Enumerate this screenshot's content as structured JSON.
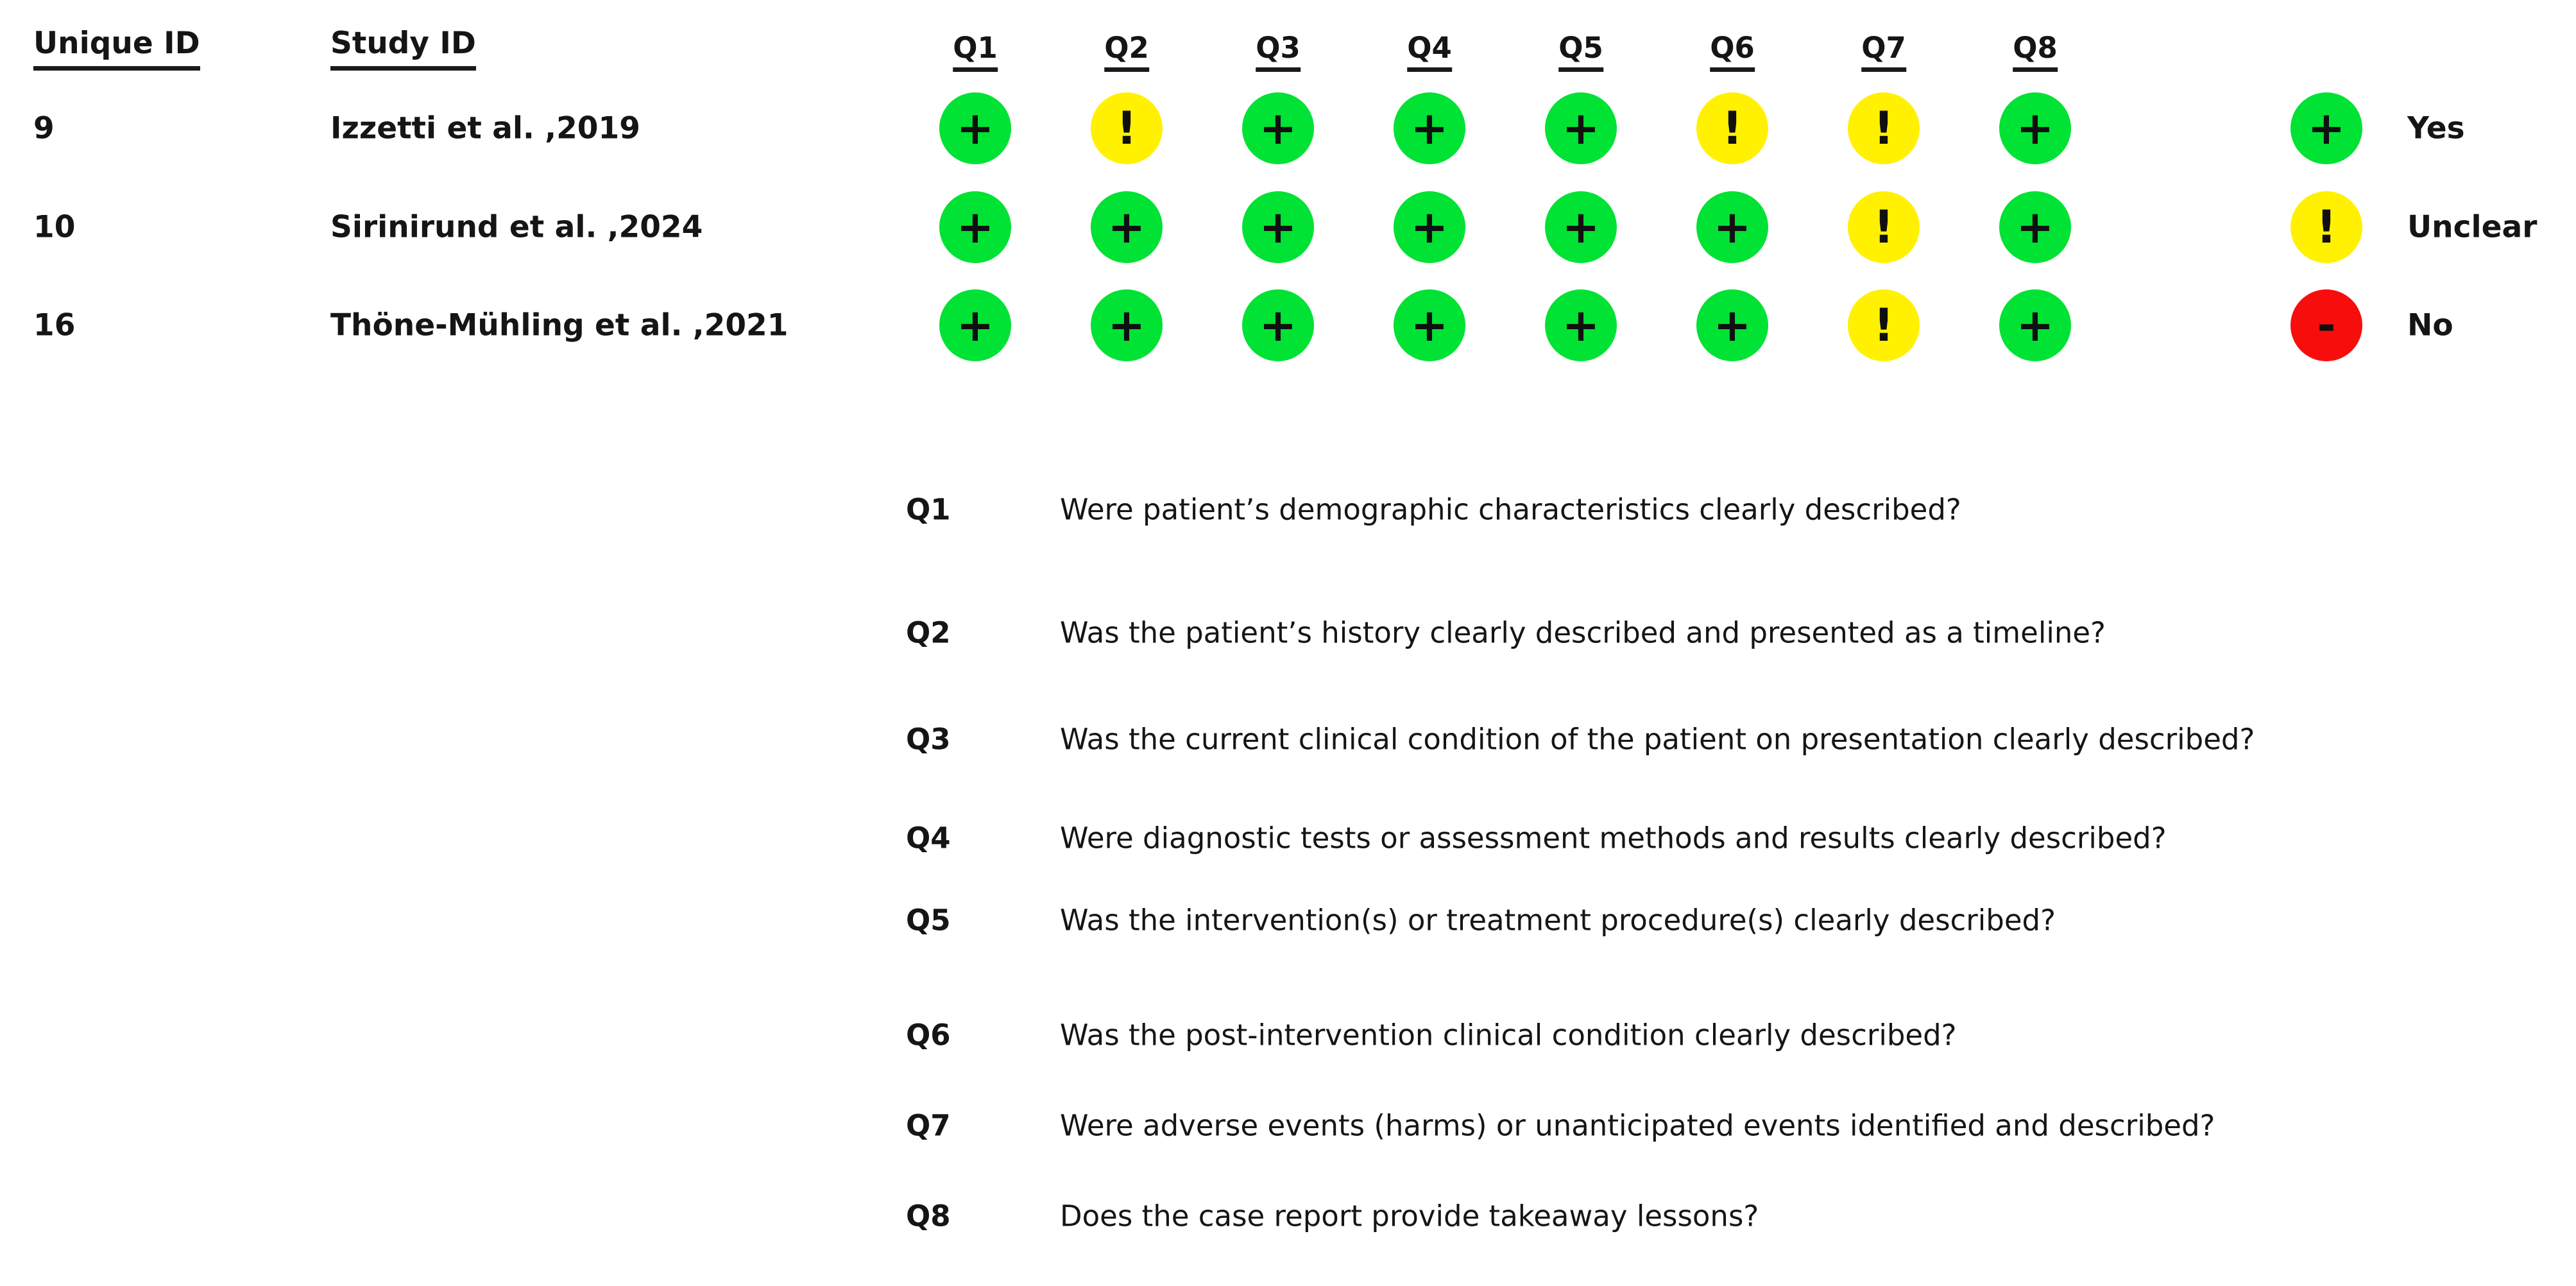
{
  "figure": {
    "headers": {
      "unique_id": "Unique ID",
      "study_id": "Study ID"
    },
    "question_columns": [
      "Q1",
      "Q2",
      "Q3",
      "Q4",
      "Q5",
      "Q6",
      "Q7",
      "Q8"
    ],
    "studies": [
      {
        "unique_id": "9",
        "study_id": "Izzetti et al. ,2019",
        "ratings": [
          "yes",
          "unclear",
          "yes",
          "yes",
          "yes",
          "unclear",
          "unclear",
          "yes"
        ]
      },
      {
        "unique_id": "10",
        "study_id": "Sirinirund et al. ,2024",
        "ratings": [
          "yes",
          "yes",
          "yes",
          "yes",
          "yes",
          "yes",
          "unclear",
          "yes"
        ]
      },
      {
        "unique_id": "16",
        "study_id": "Thöne-Mühling et al. ,2021",
        "ratings": [
          "yes",
          "yes",
          "yes",
          "yes",
          "yes",
          "yes",
          "unclear",
          "yes"
        ]
      }
    ],
    "rating_styles": {
      "yes": {
        "symbol": "+",
        "color": "#00E234"
      },
      "unclear": {
        "symbol": "!",
        "color": "#FFF100"
      },
      "no": {
        "symbol": "-",
        "color": "#F80D0D"
      }
    },
    "legend": [
      {
        "key": "yes",
        "label": "Yes"
      },
      {
        "key": "unclear",
        "label": "Unclear"
      },
      {
        "key": "no",
        "label": "No"
      }
    ],
    "questions": [
      {
        "id": "Q1",
        "text": "Were patient’s demographic characteristics clearly described?"
      },
      {
        "id": "Q2",
        "text": "Was the patient’s history clearly described and presented as a timeline?"
      },
      {
        "id": "Q3",
        "text": "Was the current clinical condition of the patient on presentation clearly described?"
      },
      {
        "id": "Q4",
        "text": "Were diagnostic tests or assessment methods and results clearly described?"
      },
      {
        "id": "Q5",
        "text": "Was the intervention(s) or treatment procedure(s) clearly described?"
      },
      {
        "id": "Q6",
        "text": "Was the post-intervention clinical condition clearly described?"
      },
      {
        "id": "Q7",
        "text": "Were adverse events (harms) or unanticipated events identified and described?"
      },
      {
        "id": "Q8",
        "text": "Does the case report provide takeaway lessons?"
      }
    ]
  },
  "chart_data": {
    "type": "heatmap",
    "title": "",
    "x_categories": [
      "Q1",
      "Q2",
      "Q3",
      "Q4",
      "Q5",
      "Q6",
      "Q7",
      "Q8"
    ],
    "y_categories": [
      {
        "unique_id": "9",
        "study_id": "Izzetti et al. ,2019"
      },
      {
        "unique_id": "10",
        "study_id": "Sirinirund et al. ,2024"
      },
      {
        "unique_id": "16",
        "study_id": "Thöne-Mühling et al. ,2021"
      }
    ],
    "values": [
      [
        "Yes",
        "Unclear",
        "Yes",
        "Yes",
        "Yes",
        "Unclear",
        "Unclear",
        "Yes"
      ],
      [
        "Yes",
        "Yes",
        "Yes",
        "Yes",
        "Yes",
        "Yes",
        "Unclear",
        "Yes"
      ],
      [
        "Yes",
        "Yes",
        "Yes",
        "Yes",
        "Yes",
        "Yes",
        "Unclear",
        "Yes"
      ]
    ],
    "legend_position": "right",
    "legend": [
      {
        "label": "Yes",
        "symbol": "+",
        "color": "#00E234"
      },
      {
        "label": "Unclear",
        "symbol": "!",
        "color": "#FFF100"
      },
      {
        "label": "No",
        "symbol": "-",
        "color": "#F80D0D"
      }
    ],
    "annotations": [
      "Q1 Were patient’s demographic characteristics clearly described?",
      "Q2 Was the patient’s history clearly described and presented as a timeline?",
      "Q3 Was the current clinical condition of the patient on presentation clearly described?",
      "Q4 Were diagnostic tests or assessment methods and results clearly described?",
      "Q5 Was the intervention(s) or treatment procedure(s) clearly described?",
      "Q6 Was the post-intervention clinical condition clearly described?",
      "Q7 Were adverse events (harms) or unanticipated events identified and described?",
      "Q8 Does the case report provide takeaway lessons?"
    ]
  }
}
